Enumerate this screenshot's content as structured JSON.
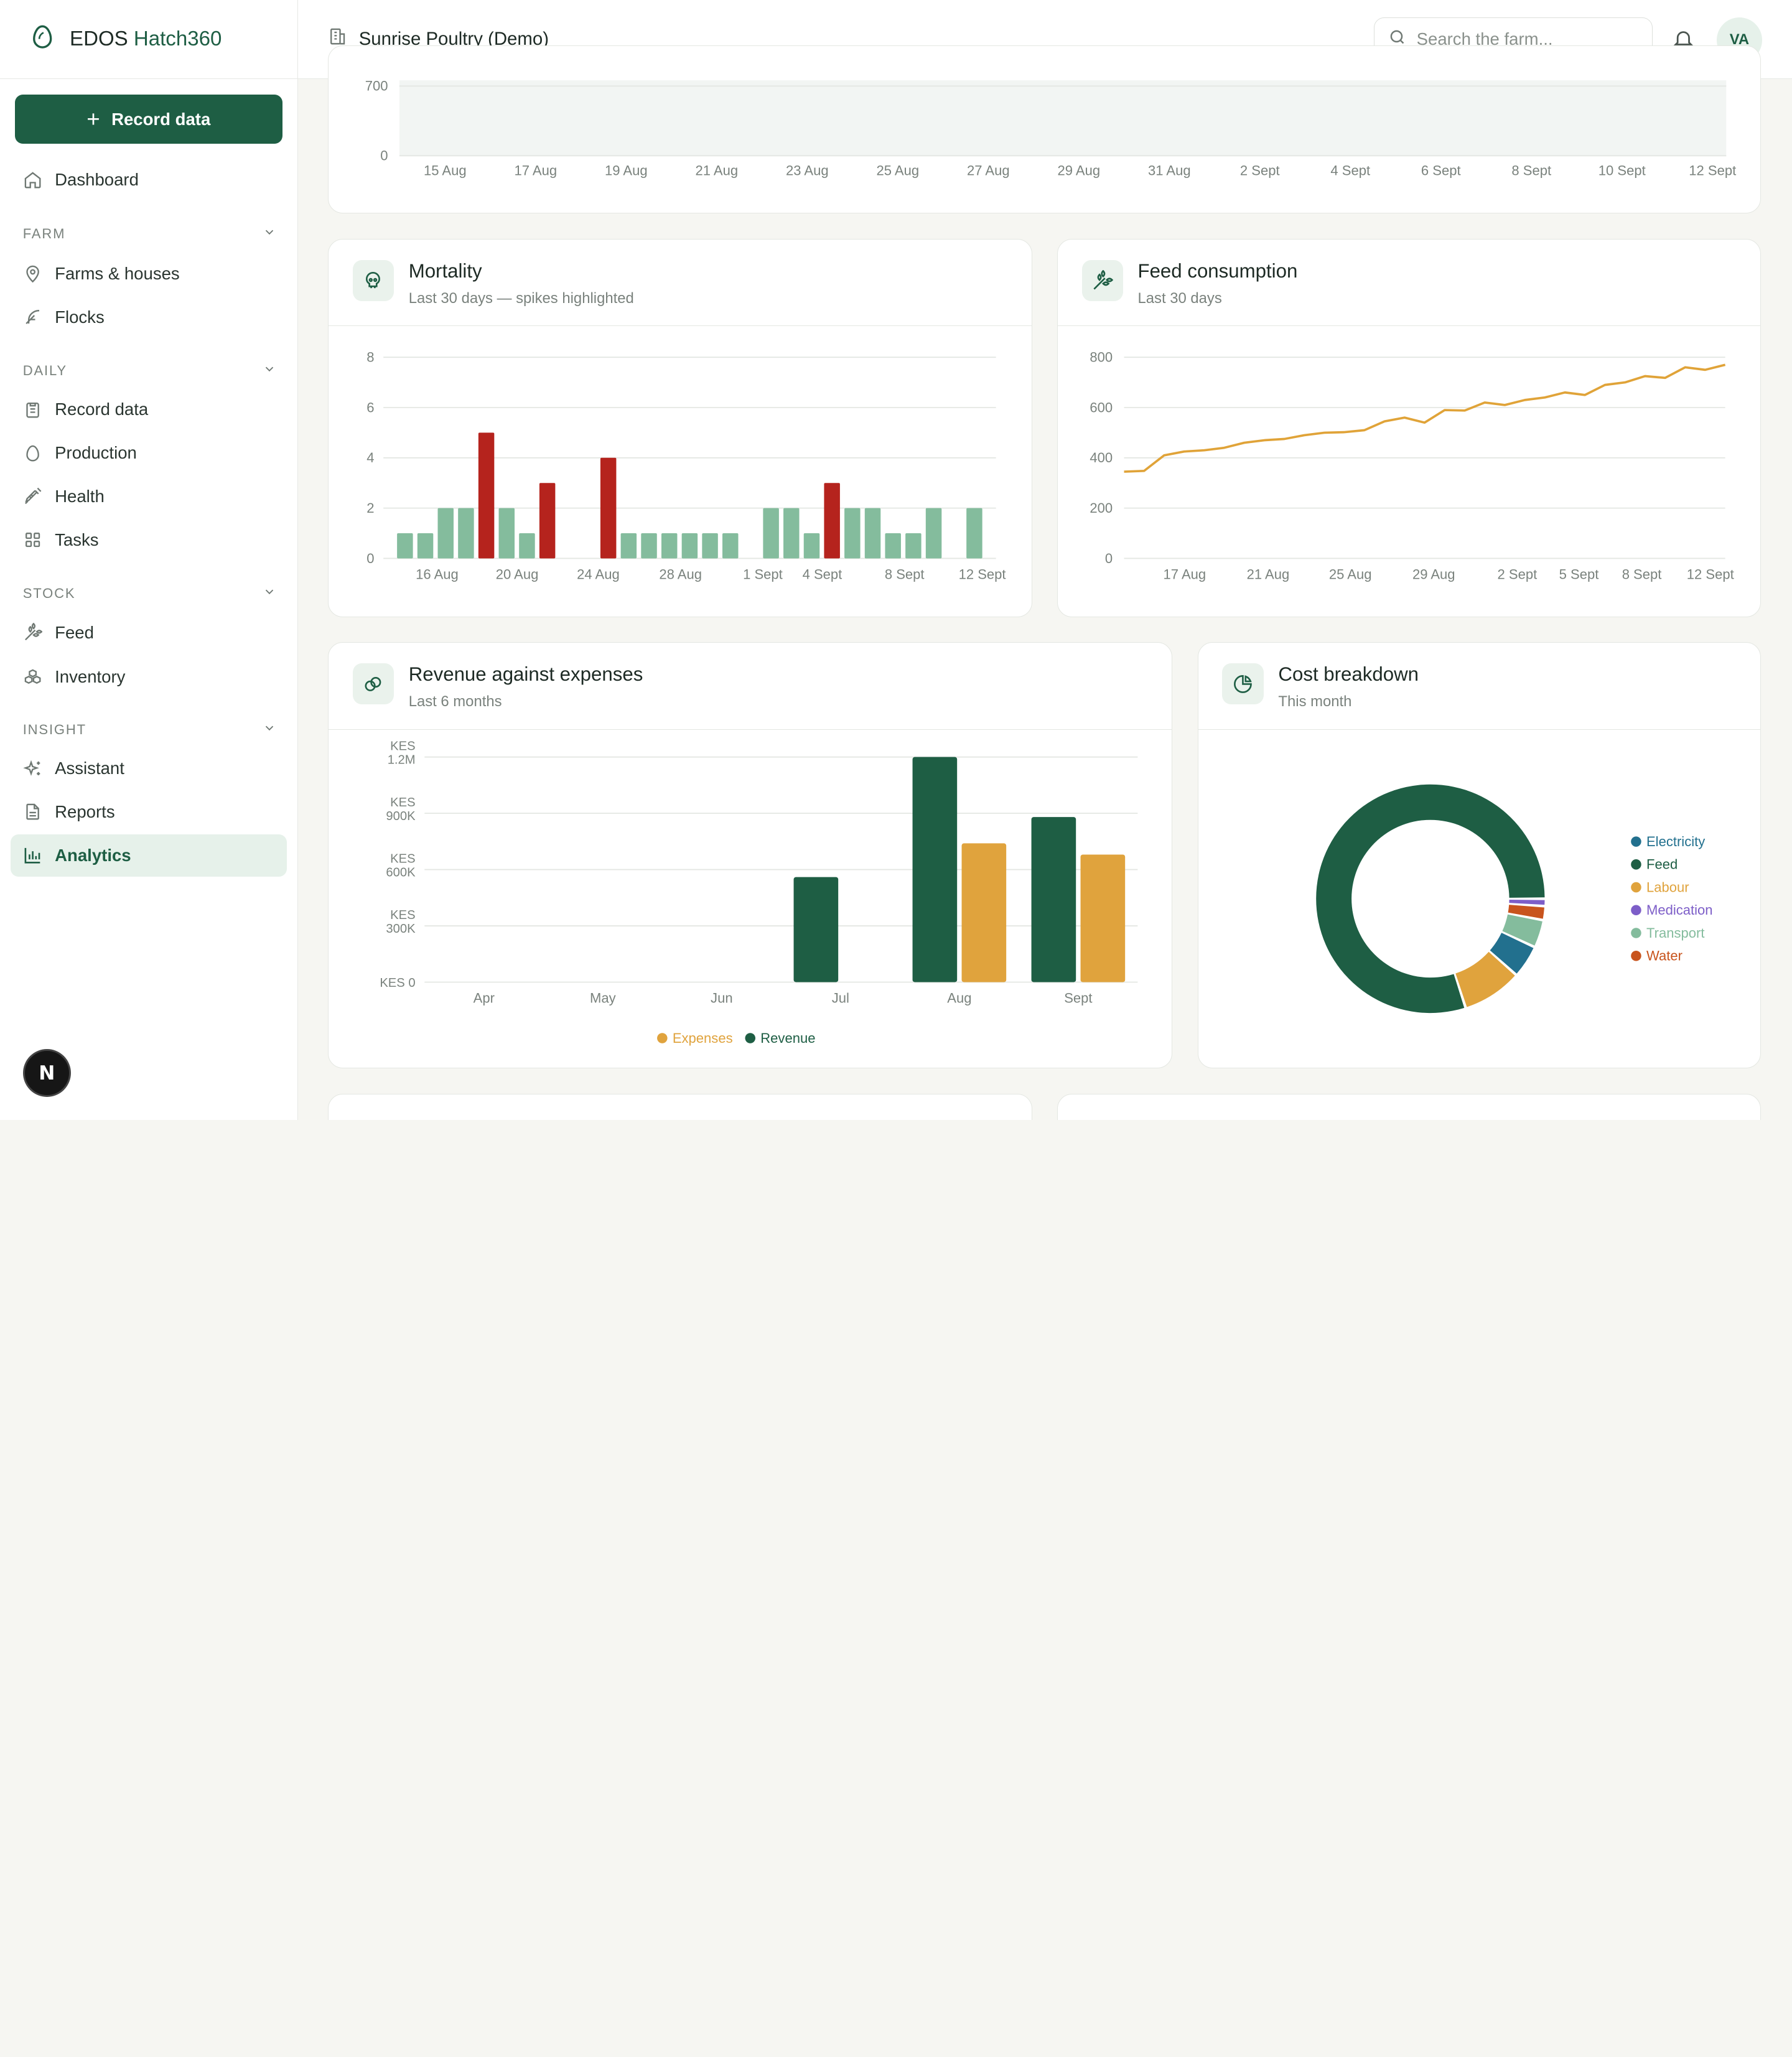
{
  "brand": {
    "name_prefix": "EDOS ",
    "name_accent": "Hatch360"
  },
  "sidebar": {
    "record_button": "Record data",
    "dashboard": "Dashboard",
    "sections": {
      "farm": {
        "label": "FARM",
        "items": [
          "Farms & houses",
          "Flocks"
        ]
      },
      "daily": {
        "label": "DAILY",
        "items": [
          "Record data",
          "Production",
          "Health",
          "Tasks"
        ]
      },
      "stock": {
        "label": "STOCK",
        "items": [
          "Feed",
          "Inventory"
        ]
      },
      "insight": {
        "label": "INSIGHT",
        "items": [
          "Assistant",
          "Reports",
          "Analytics"
        ]
      }
    },
    "active_item": "Analytics",
    "fab_label": "N"
  },
  "topbar": {
    "farm_name": "Sunrise Poultry (Demo)",
    "search_placeholder": "Search the farm...",
    "avatar_initials": "VA"
  },
  "colors": {
    "primary": "#1e5e44",
    "normal_bar": "#84bc9d",
    "spike_bar": "#b5231d",
    "feed_line": "#e0a338",
    "expenses": "#e0a33d",
    "revenue": "#1e5e44"
  },
  "cards": {
    "mortality": {
      "title": "Mortality",
      "subtitle": "Last 30 days — spikes highlighted"
    },
    "feed": {
      "title": "Feed consumption",
      "subtitle": "Last 30 days"
    },
    "revenue": {
      "title": "Revenue against expenses",
      "subtitle": "Last 6 months"
    },
    "cost": {
      "title": "Cost breakdown",
      "subtitle": "This month"
    }
  },
  "chart_data": [
    {
      "id": "top-partial",
      "type": "area",
      "x_ticks": [
        "15 Aug",
        "17 Aug",
        "19 Aug",
        "21 Aug",
        "23 Aug",
        "25 Aug",
        "27 Aug",
        "29 Aug",
        "31 Aug",
        "2 Sept",
        "4 Sept",
        "6 Sept",
        "8 Sept",
        "10 Sept",
        "12 Sept"
      ],
      "y_ticks": [
        "0",
        "700"
      ],
      "ylim": [
        0,
        700
      ]
    },
    {
      "id": "mortality",
      "type": "bar",
      "title": "Mortality",
      "values": [
        1,
        1,
        2,
        2,
        5,
        2,
        1,
        3,
        0,
        0,
        4,
        1,
        1,
        1,
        1,
        1,
        1,
        0,
        2,
        2,
        1,
        3,
        2,
        2,
        1,
        1,
        2,
        0,
        2
      ],
      "spikes": [
        4,
        7,
        10,
        21
      ],
      "x_ticks": [
        "16 Aug",
        "20 Aug",
        "24 Aug",
        "28 Aug",
        "1 Sept",
        "4 Sept",
        "8 Sept",
        "12 Sept"
      ],
      "y_ticks": [
        "0",
        "2",
        "4",
        "6",
        "8"
      ],
      "ylim": [
        0,
        8
      ]
    },
    {
      "id": "feed",
      "type": "line",
      "title": "Feed consumption",
      "values": [
        345,
        348,
        410,
        425,
        430,
        440,
        460,
        470,
        475,
        490,
        500,
        502,
        510,
        545,
        560,
        540,
        590,
        588,
        620,
        610,
        630,
        640,
        660,
        650,
        690,
        700,
        725,
        718,
        760,
        750,
        770
      ],
      "x_ticks": [
        "17 Aug",
        "21 Aug",
        "25 Aug",
        "29 Aug",
        "2 Sept",
        "5 Sept",
        "8 Sept",
        "12 Sept"
      ],
      "y_ticks": [
        "0",
        "200",
        "400",
        "600",
        "800"
      ],
      "ylim": [
        0,
        800
      ]
    },
    {
      "id": "revenue",
      "type": "bar",
      "title": "Revenue against expenses",
      "categories": [
        "Apr",
        "May",
        "Jun",
        "Jul",
        "Aug",
        "Sept"
      ],
      "series": [
        {
          "name": "Revenue",
          "values": [
            0,
            0,
            0,
            560000,
            1200000,
            880000
          ]
        },
        {
          "name": "Expenses",
          "values": [
            0,
            0,
            0,
            0,
            740000,
            680000
          ]
        }
      ],
      "y_ticks": [
        "KES 0",
        "KES 300K",
        "KES 600K",
        "KES 900K",
        "KES 1.2M"
      ],
      "ylim": [
        0,
        1200000
      ],
      "legend": [
        "Expenses",
        "Revenue"
      ]
    },
    {
      "id": "cost",
      "type": "pie",
      "title": "Cost breakdown",
      "slices": [
        {
          "label": "Feed",
          "value": 77.5,
          "color": "#1e5e44"
        },
        {
          "label": "Labour",
          "value": 8.2,
          "color": "#e0a33d"
        },
        {
          "label": "Electricity",
          "value": 4.5,
          "color": "#22708e"
        },
        {
          "label": "Transport",
          "value": 3.8,
          "color": "#84bc9d"
        },
        {
          "label": "Water",
          "value": 1.9,
          "color": "#c8541d"
        },
        {
          "label": "Medication",
          "value": 1.0,
          "color": "#7d5ec8"
        }
      ],
      "legend": [
        "Electricity",
        "Feed",
        "Labour",
        "Medication",
        "Transport",
        "Water"
      ]
    }
  ]
}
